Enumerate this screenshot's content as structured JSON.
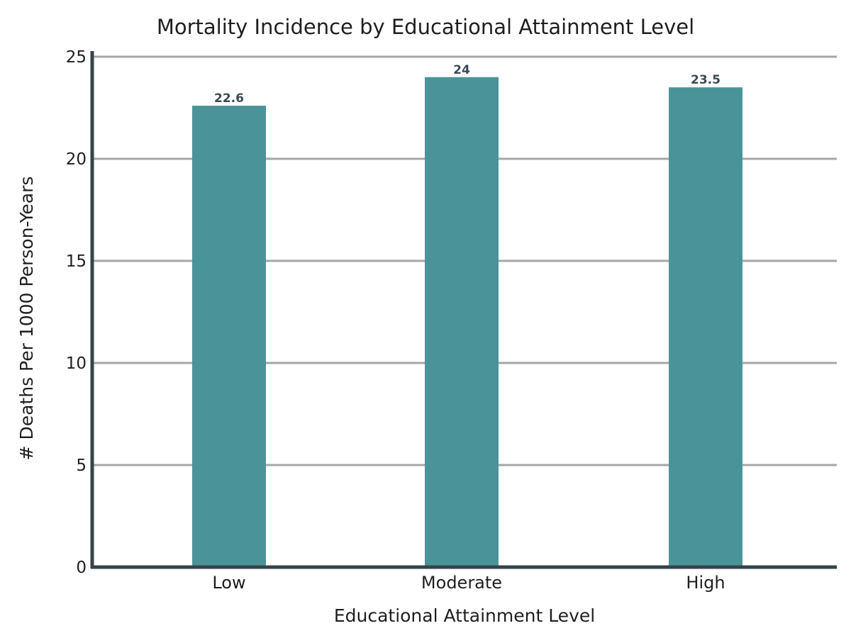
{
  "chart_data": {
    "type": "bar",
    "title": "Mortality Incidence by Educational Attainment Level",
    "xlabel": "Educational Attainment Level",
    "ylabel": "# Deaths Per 1000 Person-Years",
    "categories": [
      "Low",
      "Moderate",
      "High"
    ],
    "values": [
      22.6,
      24,
      23.5
    ],
    "value_labels": [
      "22.6",
      "24",
      "23.5"
    ],
    "ylim": [
      0,
      25
    ],
    "yticks": [
      "0",
      "5",
      "10",
      "15",
      "20",
      "25"
    ],
    "grid": true,
    "colors": {
      "bar": "#4a9499",
      "grid": "#a6a6a6",
      "axis": "#37434b",
      "data_label": "#3b4a55"
    }
  }
}
